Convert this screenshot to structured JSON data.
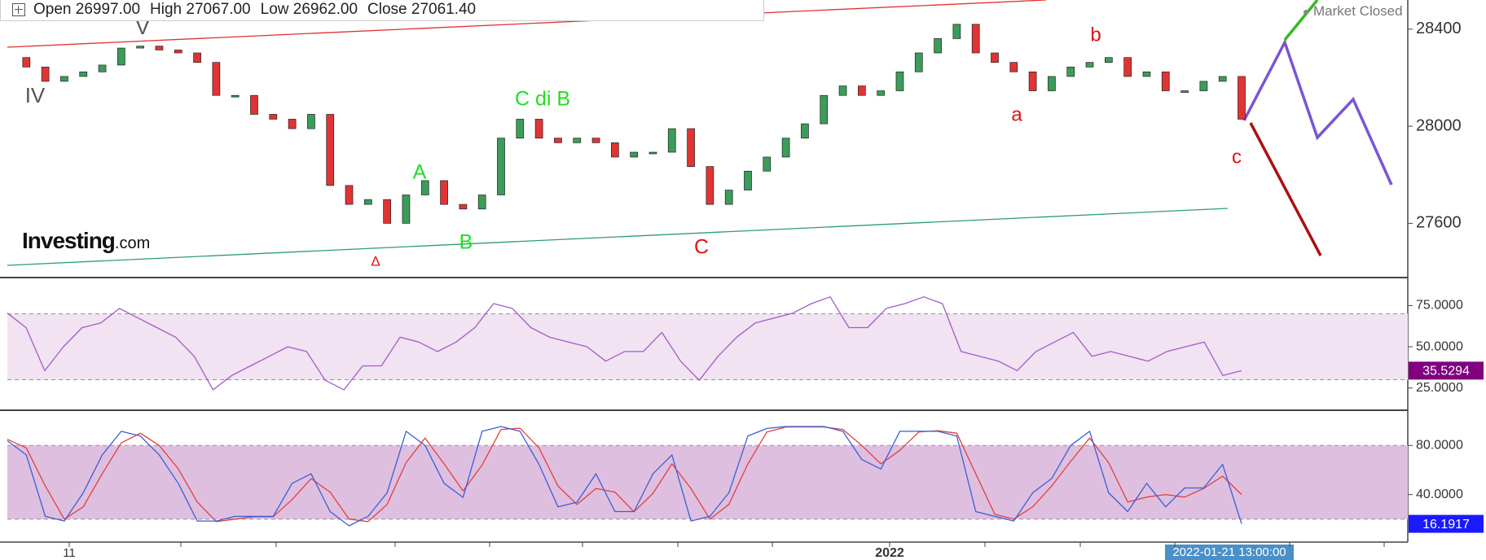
{
  "header": {
    "ohlc": [
      {
        "label": "Open",
        "value": "26997.00"
      },
      {
        "label": "High",
        "value": "27067.00"
      },
      {
        "label": "Low",
        "value": "26962.00"
      },
      {
        "label": "Close",
        "value": "27061.40"
      }
    ],
    "status": "Market Closed",
    "logo": [
      "Investing",
      ".com"
    ]
  },
  "x_axis": {
    "labels": [
      "11",
      "2022"
    ],
    "cursor": "2022-01-21 13:00:00"
  },
  "chart_data": [
    {
      "type": "candlestick",
      "up_color": "#3c9c5a",
      "down_color": "#e03434",
      "values": [
        28283,
        28244,
        28185,
        28205,
        28224,
        28252,
        28322,
        28330,
        28314,
        28302,
        28263,
        28127,
        28127,
        28049,
        28029,
        27990,
        28049,
        27756,
        27678,
        27698,
        27600,
        27717,
        27776,
        27678,
        27659,
        27717,
        27951,
        28029,
        27951,
        27932,
        27951,
        27932,
        27873,
        27893,
        27893,
        27990,
        27834,
        27678,
        27737,
        27815,
        27873,
        27951,
        28010,
        28127,
        28166,
        28127,
        28146,
        28224,
        28302,
        28361,
        28420,
        28302,
        28263,
        28224,
        28146,
        28205,
        28244,
        28263,
        28283,
        28205,
        28224,
        28146,
        28146,
        28185,
        28205,
        28029
      ],
      "ylim": [
        27380,
        28520
      ],
      "yticks": [
        27600,
        28000,
        28400
      ],
      "annotations": [
        {
          "text": "IV",
          "color": "#555555"
        },
        {
          "text": "V",
          "color": "#555555"
        },
        {
          "text": "Δ",
          "color": "#e01010"
        },
        {
          "text": "A",
          "color": "#22dd22"
        },
        {
          "text": "B",
          "color": "#22dd22"
        },
        {
          "text": "C di B",
          "color": "#22dd22"
        },
        {
          "text": "C",
          "color": "#e01010"
        },
        {
          "text": "a",
          "color": "#e01010"
        },
        {
          "text": "b",
          "color": "#e01010"
        },
        {
          "text": "c",
          "color": "#e01010"
        }
      ]
    },
    {
      "type": "line",
      "ylim": [
        12.5,
        91
      ],
      "band": [
        30,
        70
      ],
      "band_color": "#f1e3f2",
      "tag_color": "#800080",
      "yticks": [
        {
          "value": 25,
          "label": "25.0000"
        },
        {
          "value": 50,
          "label": "50.0000"
        },
        {
          "value": 75,
          "label": "75.0000"
        }
      ],
      "series": [
        {
          "color": "#a55ac8",
          "values": [
            70.4,
            61.6,
            35.5,
            50,
            61.6,
            64.5,
            73.3,
            67.4,
            61.6,
            55.8,
            44.2,
            23.9,
            32.6,
            38.4,
            44.2,
            50,
            47.1,
            29.7,
            23.9,
            38.4,
            38.4,
            55.8,
            52.9,
            47.1,
            52.9,
            61.6,
            76.2,
            73.3,
            61.6,
            55.8,
            52.9,
            50,
            41.3,
            47.1,
            47.1,
            58.7,
            41.3,
            29.7,
            44.2,
            55.8,
            64.5,
            67.4,
            70.4,
            76.2,
            80.3,
            61.6,
            61.6,
            73.3,
            76.2,
            80.3,
            76.2,
            47.1,
            44.2,
            41.3,
            35.5,
            47.1,
            52.9,
            58.7,
            44.2,
            47.1,
            44.2,
            41.3,
            47.1,
            50,
            52.9,
            32.6,
            35.5294
          ]
        }
      ]
    },
    {
      "type": "line",
      "ylim": [
        2,
        108
      ],
      "band": [
        20,
        80
      ],
      "band_color": "#dfbfdf",
      "tag_color": "#1a1aff",
      "yticks": [
        {
          "value": 40,
          "label": "40.0000"
        },
        {
          "value": 80,
          "label": "80.0000"
        }
      ],
      "series": [
        {
          "color": "#3a5fd8",
          "values": [
            83.8,
            72.3,
            22.3,
            18.5,
            41.5,
            72.3,
            91.5,
            87.7,
            72.3,
            49.2,
            18.5,
            18.5,
            22.3,
            22.3,
            22.3,
            49.2,
            56.9,
            26.2,
            14.6,
            22.3,
            41.5,
            91.5,
            80,
            49.2,
            37.7,
            91.5,
            95.4,
            91.5,
            64.6,
            30,
            33.8,
            56.9,
            26.2,
            26.2,
            56.9,
            72.3,
            18.5,
            22.3,
            41.5,
            87.7,
            93.8,
            95.4,
            95.4,
            95.4,
            91.5,
            68.5,
            60.8,
            91.5,
            91.5,
            91.5,
            87.7,
            26.2,
            22.3,
            18.5,
            41.5,
            53.1,
            80,
            91.5,
            41.5,
            26.2,
            49.2,
            30,
            45.4,
            45.4,
            64.6,
            16.1917
          ]
        },
        {
          "color": "#e04040",
          "values": [
            85,
            78,
            47,
            20,
            30,
            57,
            82,
            90,
            80,
            61,
            34,
            18,
            20,
            22,
            22,
            36,
            53,
            42,
            20,
            18,
            32,
            66,
            86,
            65,
            43,
            64,
            93,
            94,
            78,
            47,
            32,
            45,
            42,
            26,
            41,
            65,
            45,
            20,
            32,
            65,
            91,
            95,
            95,
            95,
            93,
            80,
            65,
            76,
            91,
            92,
            90,
            57,
            24,
            20,
            30,
            47,
            67,
            86,
            66,
            34,
            38,
            40,
            38,
            45,
            55,
            40
          ]
        }
      ]
    }
  ]
}
